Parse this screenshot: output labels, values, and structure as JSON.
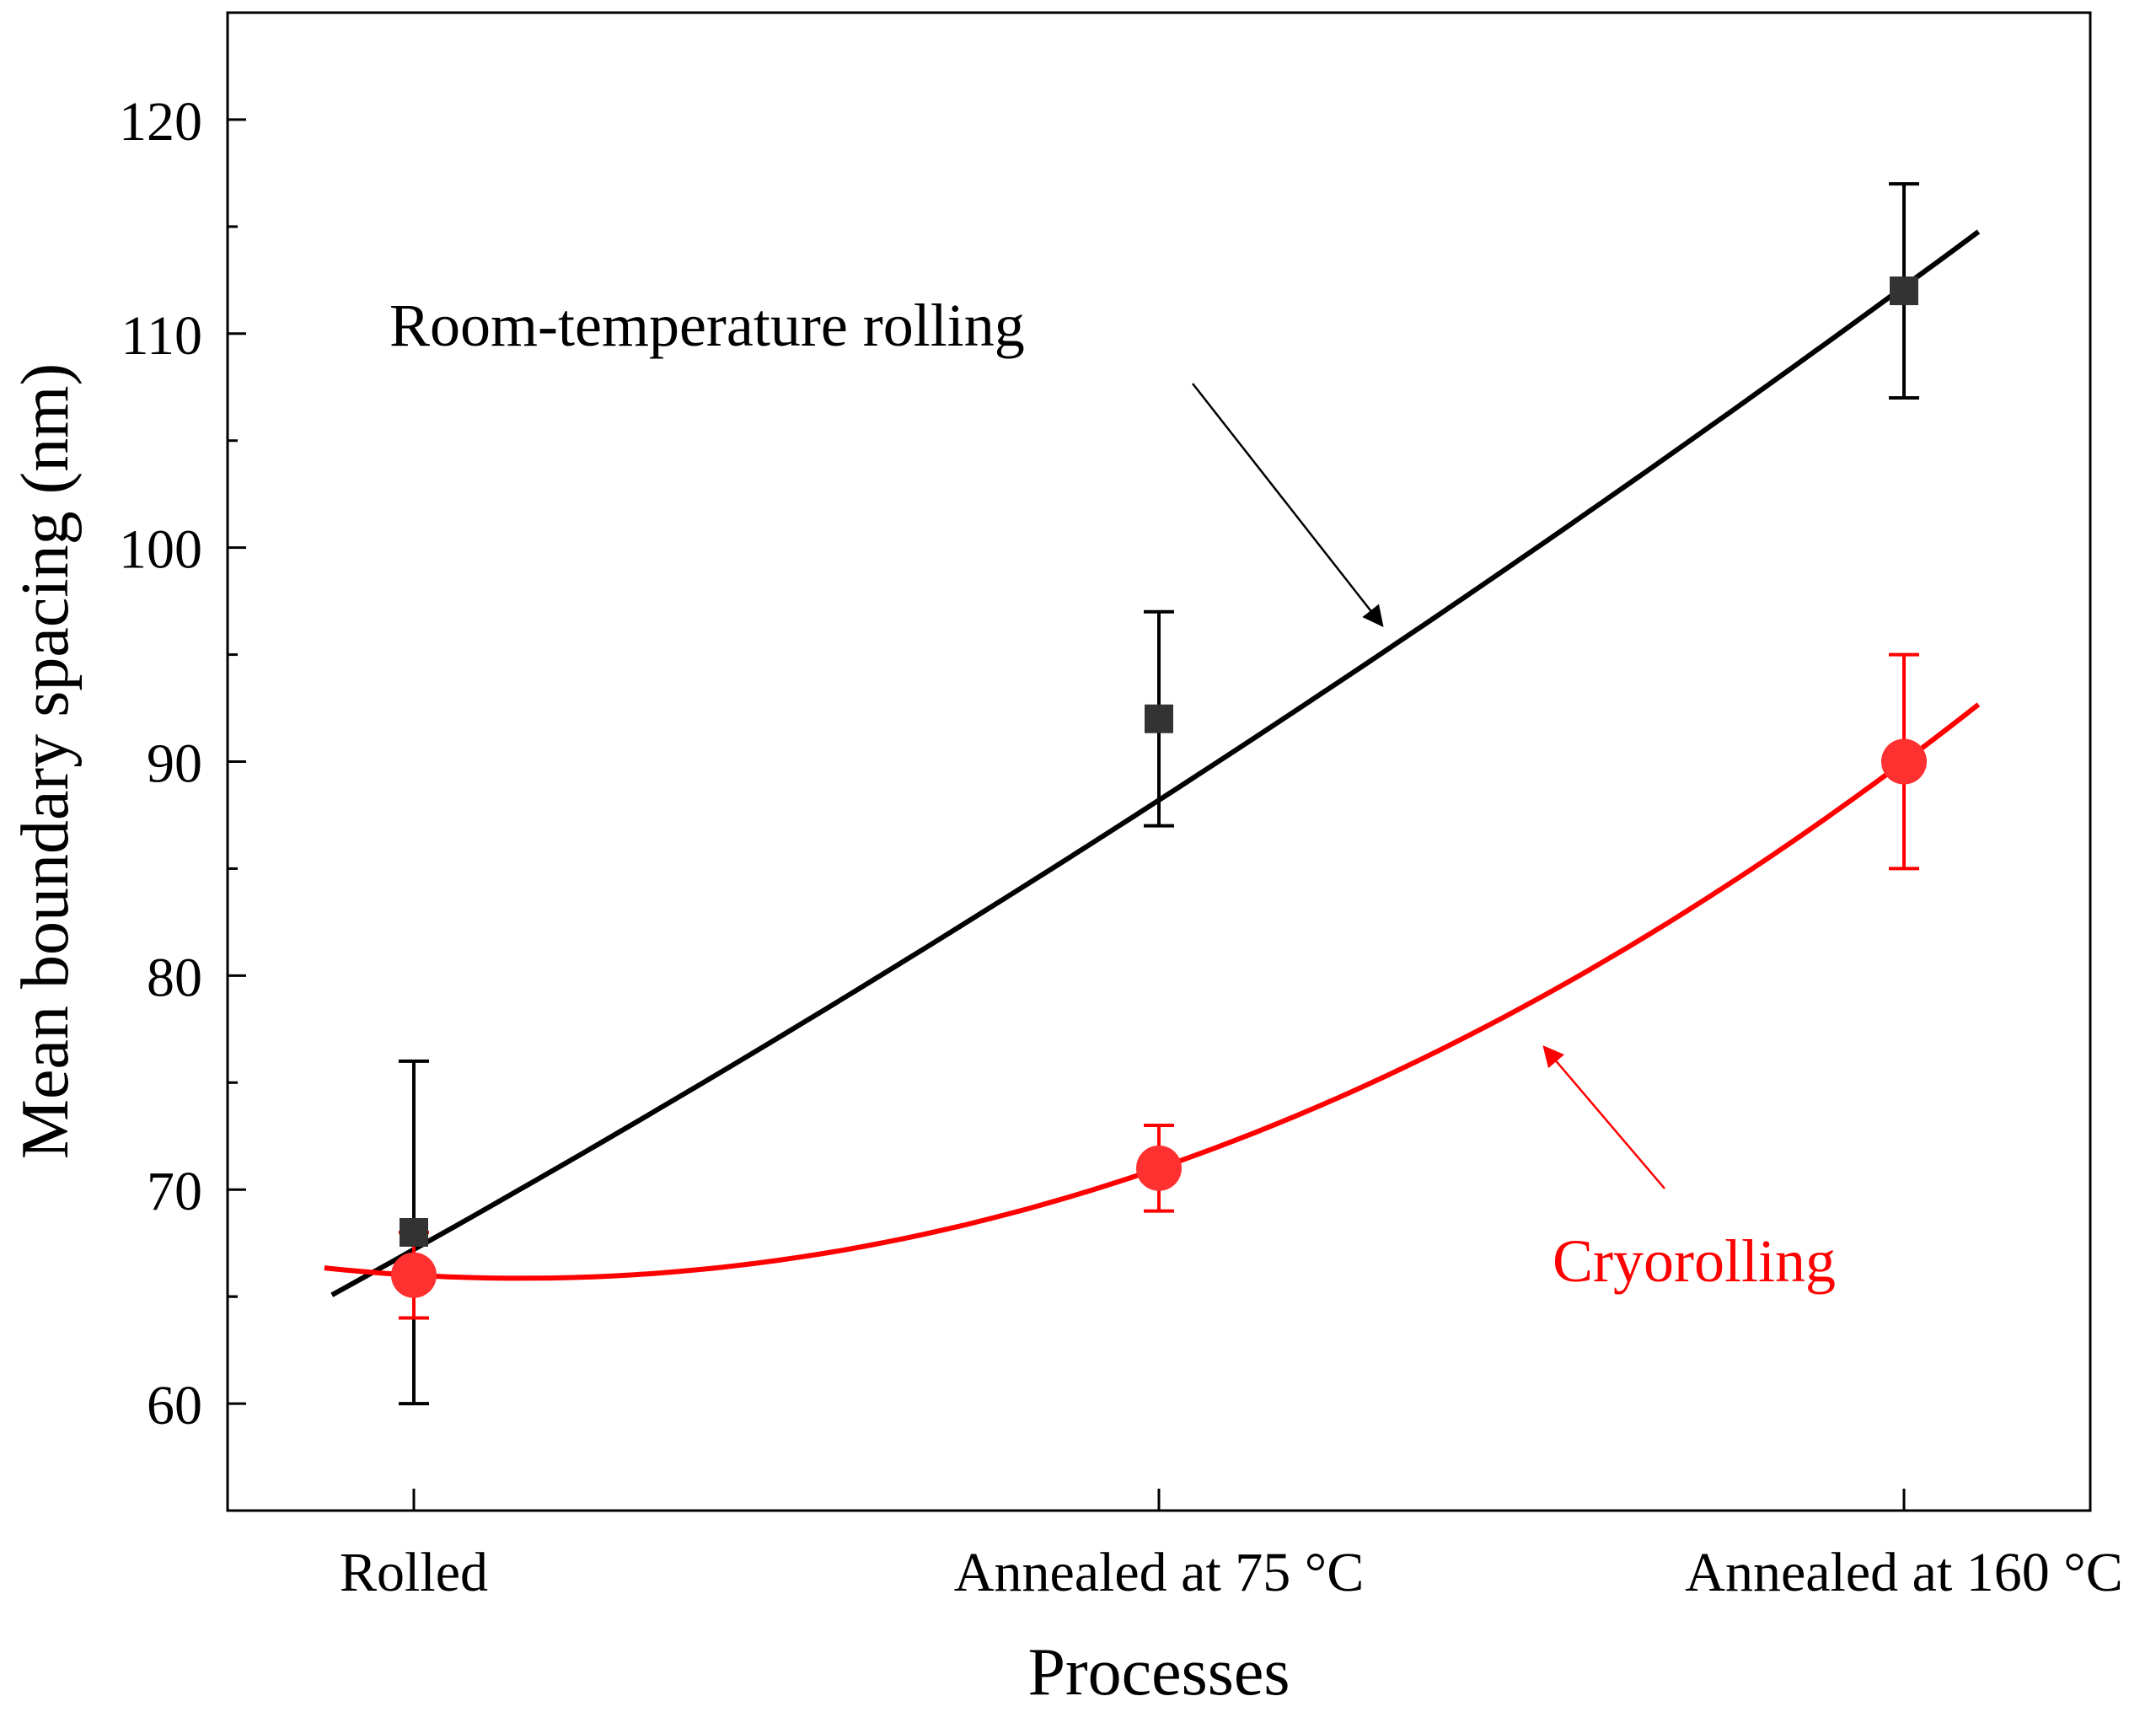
{
  "colors": {
    "room": "#000000",
    "room_marker": "#333333",
    "cryo": "#ff0000",
    "cryo_marker": "#ff3030",
    "axis": "#000000"
  },
  "chart_data": {
    "type": "scatter",
    "title": "",
    "xlabel": "Processes",
    "ylabel": "Mean boundary spacing (nm)",
    "categories": [
      "Rolled",
      "Annealed at 75 °C",
      "Annealed at 160 °C"
    ],
    "x": [
      1,
      2,
      3
    ],
    "xlim": [
      0.75,
      3.25
    ],
    "ylim": [
      55,
      125
    ],
    "yticks": [
      60,
      70,
      80,
      90,
      100,
      110,
      120
    ],
    "grid": false,
    "series": [
      {
        "name": "Room-temperature rolling",
        "marker": "square",
        "values": [
          68,
          92,
          112
        ],
        "errors": [
          8,
          5,
          5
        ],
        "fit": {
          "type": "quadratic",
          "x_range": [
            0.89,
            3.1
          ],
          "points": [
            [
              1,
              67.2
            ],
            [
              2,
              88.2
            ],
            [
              3,
              112.2
            ]
          ]
        }
      },
      {
        "name": "Cryorolling",
        "marker": "circle",
        "values": [
          66,
          71,
          90
        ],
        "errors": [
          2,
          2,
          5
        ],
        "fit": {
          "type": "quadratic",
          "x_range": [
            0.88,
            3.1
          ],
          "points": [
            [
              1,
              66.0
            ],
            [
              2,
              71.0
            ],
            [
              3,
              90.0
            ]
          ]
        }
      }
    ],
    "annotations": [
      {
        "text": "Room-temperature rolling",
        "series": 0
      },
      {
        "text": "Cryorolling",
        "series": 1
      }
    ]
  }
}
